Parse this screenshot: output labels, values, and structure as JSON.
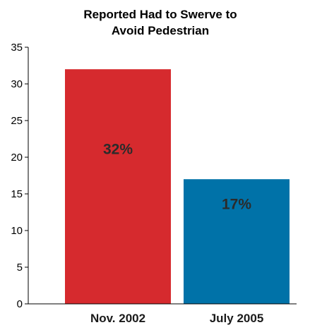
{
  "chart_data": {
    "type": "bar",
    "title_lines": [
      "Reported Had to Swerve to",
      "Avoid Pedestrian"
    ],
    "categories": [
      "Nov. 2002",
      "July 2005"
    ],
    "values": [
      32,
      17
    ],
    "data_labels": [
      "32%",
      "17%"
    ],
    "bar_colors": [
      "#d62a2e",
      "#0072a8"
    ],
    "xlabel": "",
    "ylabel": "",
    "ylim": [
      0,
      35
    ],
    "yticks": [
      0,
      5,
      10,
      15,
      20,
      25,
      30,
      35
    ],
    "grid": false,
    "legend": "none"
  }
}
